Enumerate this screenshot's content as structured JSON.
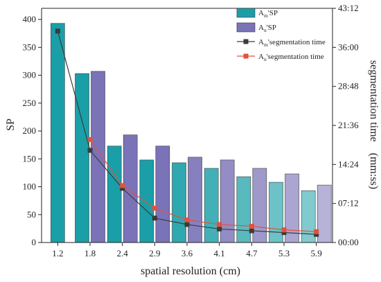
{
  "chart_data": {
    "type": "bar",
    "categories": [
      "1.2",
      "1.8",
      "2.4",
      "2.9",
      "3.6",
      "4.1",
      "4.7",
      "5.3",
      "5.9"
    ],
    "xlabel": "spatial resolution (cm)",
    "ylabel_left": "SP",
    "ylabel_right": "segmentation time　(mm:ss)",
    "ylim_left": [
      0,
      420
    ],
    "yticks_left": [
      "0",
      "50",
      "100",
      "150",
      "200",
      "250",
      "300",
      "350",
      "400"
    ],
    "ylim_right_seconds": [
      0,
      2592
    ],
    "yticks_right": [
      "00:00",
      "07:12",
      "14:24",
      "21:36",
      "28:48",
      "36:00",
      "43:12"
    ],
    "series": [
      {
        "name": "Am'SP",
        "legend_main": "A",
        "legend_sub": "m",
        "legend_suffix": "'SP",
        "kind": "bar",
        "axis": "left",
        "color": "#1a9fa8",
        "values": [
          393,
          303,
          173,
          148,
          143,
          133,
          118,
          108,
          93
        ]
      },
      {
        "name": "An'SP",
        "legend_main": "A",
        "legend_sub": "n",
        "legend_suffix": "'SP",
        "kind": "bar",
        "axis": "left",
        "color": "#7b73b8",
        "values": [
          null,
          307,
          193,
          173,
          153,
          148,
          133,
          123,
          103
        ]
      },
      {
        "name": "Am'segmentation time",
        "legend_main": "A",
        "legend_sub": "m",
        "legend_suffix": "'segmentation time",
        "kind": "line",
        "axis": "right",
        "color": "#3b3b3b",
        "values": [
          "39:00",
          "17:00",
          "10:00",
          "04:30",
          "03:20",
          "02:30",
          "02:10",
          "01:50",
          "01:30"
        ]
      },
      {
        "name": "An'segmentation time",
        "legend_main": "A",
        "legend_sub": "n",
        "legend_suffix": "'segmentation time",
        "kind": "line",
        "axis": "right",
        "color": "#e0523e",
        "values": [
          null,
          "19:00",
          "10:30",
          "06:20",
          "04:10",
          "03:20",
          "03:00",
          "02:20",
          "02:00"
        ]
      }
    ],
    "legend_position": "top-right",
    "grid": false
  }
}
